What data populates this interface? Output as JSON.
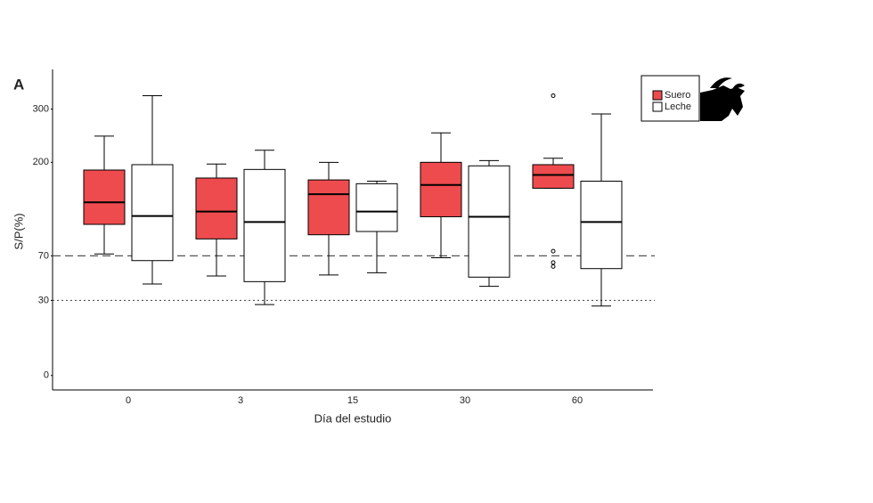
{
  "chart_data": {
    "type": "box",
    "panel_label": "A",
    "xlabel": "Día del estudio",
    "ylabel": "S/P(%)",
    "categories": [
      "0",
      "3",
      "15",
      "30",
      "60"
    ],
    "yscale": "power",
    "yexponent": 0.55,
    "ylim": [
      -1.5,
      386
    ],
    "yticks": [
      0,
      30,
      70,
      200,
      300
    ],
    "reference_lines": [
      {
        "value": 70,
        "style": "dashed"
      },
      {
        "value": 30,
        "style": "dotted"
      }
    ],
    "legend": "top-right",
    "series": [
      {
        "name": "Suero",
        "color": "#ee4b4e",
        "boxes": [
          {
            "min": 72,
            "q1": 107,
            "median": 137,
            "q3": 187,
            "max": 247,
            "outliers": []
          },
          {
            "min": 50,
            "q1": 89,
            "median": 124,
            "q3": 174,
            "max": 197,
            "outliers": []
          },
          {
            "min": 51,
            "q1": 94,
            "median": 149,
            "q3": 171,
            "max": 200,
            "outliers": []
          },
          {
            "min": 68,
            "q1": 117,
            "median": 163,
            "q3": 200,
            "max": 253,
            "outliers": []
          },
          {
            "min": 158,
            "q1": 158,
            "median": 179,
            "q3": 196,
            "max": 207,
            "outliers": [
              328,
              75,
              63,
              59
            ]
          }
        ]
      },
      {
        "name": "Leche",
        "color": "#ffffff",
        "boxes": [
          {
            "min": 43,
            "q1": 65,
            "median": 118,
            "q3": 196,
            "max": 328,
            "outliers": []
          },
          {
            "min": 27,
            "q1": 45,
            "median": 110,
            "q3": 188,
            "max": 221,
            "outliers": []
          },
          {
            "min": 53,
            "q1": 98,
            "median": 124,
            "q3": 165,
            "max": 169,
            "outliers": []
          },
          {
            "min": 41,
            "q1": 49,
            "median": 117,
            "q3": 194,
            "max": 203,
            "outliers": []
          },
          {
            "min": 26,
            "q1": 57,
            "median": 110,
            "q3": 169,
            "max": 290,
            "outliers": []
          }
        ]
      }
    ]
  }
}
